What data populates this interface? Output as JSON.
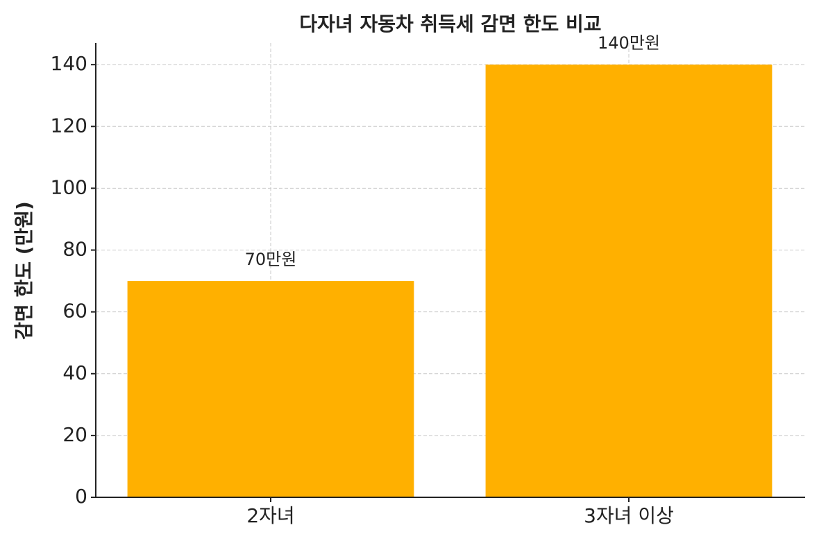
{
  "chart_data": {
    "type": "bar",
    "title": "다자녀 자동차 취득세 감면 한도 비교",
    "y_label": "감면 한도 (만원)",
    "categories": [
      "2자녀",
      "3자녀 이상"
    ],
    "values": [
      70,
      140
    ],
    "value_labels": [
      "70만원",
      "140만원"
    ],
    "color": "#ffb000",
    "ylim": [
      0,
      147
    ],
    "yticks": [
      0,
      20,
      40,
      60,
      80,
      100,
      120,
      140
    ],
    "grid": true
  }
}
